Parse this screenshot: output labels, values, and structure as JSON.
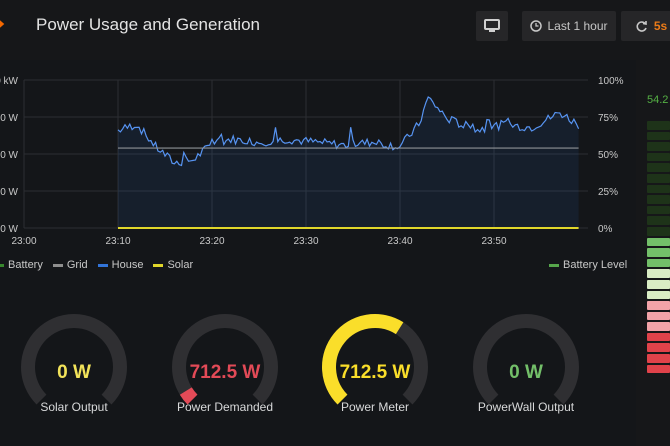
{
  "header": {
    "title": "Power Usage and Generation",
    "time_range": "Last 1 hour",
    "refresh_rate": "5s"
  },
  "graph": {
    "y_left_ticks": [
      "0 kW",
      "0 W",
      "0 W",
      "0 W",
      "0 W"
    ],
    "y_right_ticks": [
      "100%",
      "75%",
      "50%",
      "25%",
      "0%"
    ],
    "x_ticks": [
      "23:00",
      "23:10",
      "23:20",
      "23:30",
      "23:40",
      "23:50"
    ],
    "legend": [
      {
        "label": "Battery",
        "color": "#37872d"
      },
      {
        "label": "Grid",
        "color": "#8e8e8e"
      },
      {
        "label": "House",
        "color": "#3274d9"
      },
      {
        "label": "Solar",
        "color": "#e0d62a"
      }
    ],
    "legend_right": {
      "label": "Battery Level",
      "color": "#56a64b"
    }
  },
  "chart_data": {
    "type": "line",
    "x_range": [
      "23:00",
      "23:59"
    ],
    "series": [
      {
        "name": "House",
        "color": "#3274d9",
        "x": [
          "23:10",
          "23:12",
          "23:14",
          "23:16",
          "23:18",
          "23:20",
          "23:22",
          "23:25",
          "23:28",
          "23:31",
          "23:34",
          "23:37",
          "23:40",
          "23:42",
          "23:43",
          "23:45",
          "23:48",
          "23:51",
          "23:54",
          "23:57",
          "23:59"
        ],
        "y_pct": [
          66,
          70,
          55,
          44,
          46,
          57,
          60,
          58,
          60,
          58,
          56,
          58,
          55,
          70,
          88,
          74,
          66,
          70,
          68,
          78,
          70
        ]
      },
      {
        "name": "Solar",
        "color": "#e0d62a",
        "x": [
          "23:10",
          "23:59"
        ],
        "y_pct": [
          0,
          0
        ]
      },
      {
        "name": "Battery Level",
        "color": "#56a64b",
        "x": [
          "23:10",
          "23:59"
        ],
        "y_pct": [
          54,
          54
        ]
      }
    ]
  },
  "gauges": [
    {
      "label": "Solar Output",
      "value": "0 W",
      "fraction": 0.0,
      "color": "#f2e35a"
    },
    {
      "label": "Power Demanded",
      "value": "712.5 W",
      "fraction": 0.05,
      "color": "#e34a57"
    },
    {
      "label": "Power Meter",
      "value": "712.5 W",
      "fraction": 0.62,
      "color": "#fade2a"
    },
    {
      "label": "PowerWall Output",
      "value": "0 W",
      "fraction": 0.0,
      "color": "#73bf69"
    }
  ],
  "battery": {
    "percent_text": "54.2",
    "level": 0.54
  }
}
